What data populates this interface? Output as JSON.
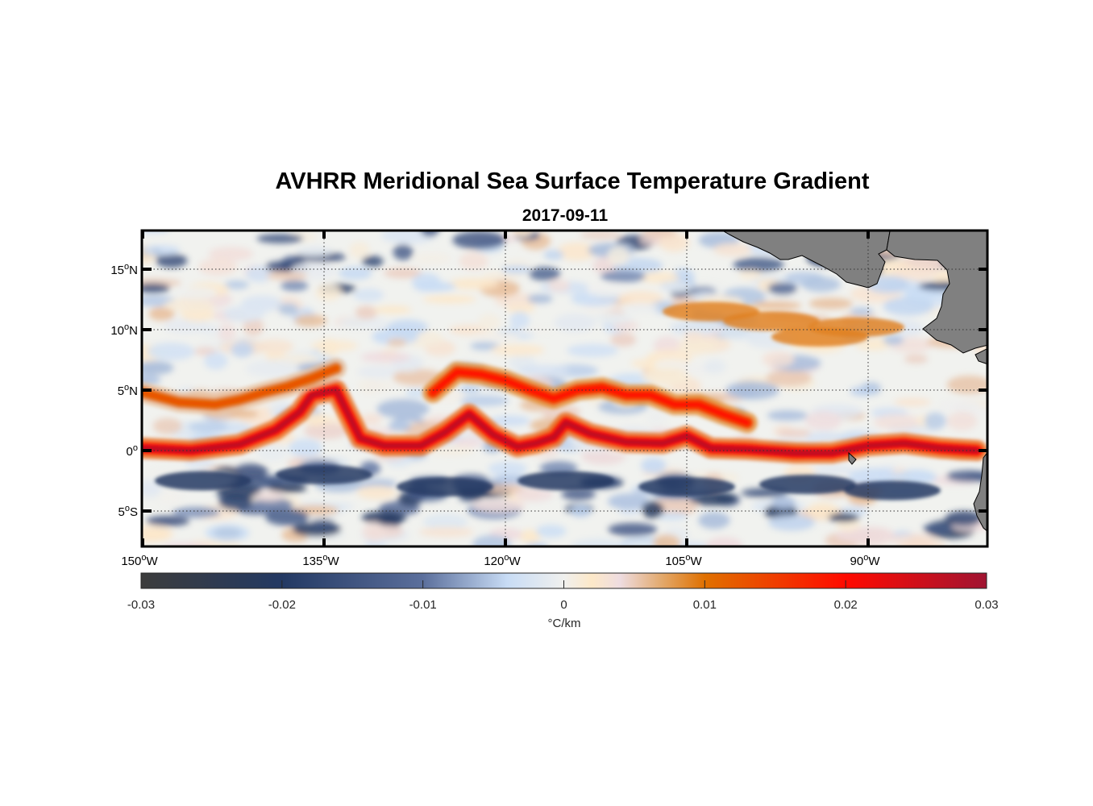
{
  "chart_data": {
    "type": "heatmap",
    "title": "AVHRR Meridional Sea Surface Temperature Gradient",
    "subtitle": "2017-09-11",
    "xlabel": "",
    "ylabel": "",
    "x_range_deg_lon": [
      -150,
      -80
    ],
    "y_range_deg_lat": [
      -8,
      18.2
    ],
    "x_ticks": [
      {
        "value": -150,
        "num": "150",
        "hemi": "W"
      },
      {
        "value": -135,
        "num": "135",
        "hemi": "W"
      },
      {
        "value": -120,
        "num": "120",
        "hemi": "W"
      },
      {
        "value": -105,
        "num": "105",
        "hemi": "W"
      },
      {
        "value": -90,
        "num": "90",
        "hemi": "W"
      }
    ],
    "y_ticks": [
      {
        "value": 15,
        "num": "15",
        "hemi": "N"
      },
      {
        "value": 10,
        "num": "10",
        "hemi": "N"
      },
      {
        "value": 5,
        "num": "5",
        "hemi": "N"
      },
      {
        "value": 0,
        "num": "0",
        "hemi": ""
      },
      {
        "value": -5,
        "num": "5",
        "hemi": "S"
      }
    ],
    "grid": true,
    "land_color": "#808080",
    "colorbar": {
      "label": "°C/km",
      "range": [
        -0.03,
        0.03
      ],
      "ticks": [
        -0.03,
        -0.02,
        -0.01,
        0,
        0.01,
        0.02,
        0.03
      ],
      "tick_labels": [
        "-0.03",
        "-0.02",
        "-0.01",
        "0",
        "0.01",
        "0.02",
        "0.03"
      ],
      "placement": "bottom",
      "colormap": [
        {
          "v": -0.03,
          "c": "#3c3c3c"
        },
        {
          "v": -0.02,
          "c": "#233963"
        },
        {
          "v": -0.01,
          "c": "#5b6f9c"
        },
        {
          "v": -0.004,
          "c": "#c8dcf5"
        },
        {
          "v": 0,
          "c": "#f0f0ee"
        },
        {
          "v": 0.002,
          "c": "#fde8c8"
        },
        {
          "v": 0.004,
          "c": "#eedce0"
        },
        {
          "v": 0.007,
          "c": "#e2a86a"
        },
        {
          "v": 0.01,
          "c": "#e07000"
        },
        {
          "v": 0.02,
          "c": "#ff0a00"
        },
        {
          "v": 0.03,
          "c": "#a01432"
        }
      ]
    },
    "features": [
      {
        "kind": "front",
        "desc": "tropical instability wave front (positive gradient)",
        "lon": [
          -150,
          -146,
          -142,
          -139,
          -137,
          -136,
          -134,
          -132,
          -130,
          -127,
          -125,
          -123,
          -121,
          -119,
          -117.5,
          -116,
          -115,
          -113,
          -110,
          -107,
          -105,
          -103,
          -100,
          -96,
          -93,
          -90,
          -87,
          -84,
          -81
        ],
        "lat": [
          0.2,
          0,
          0.5,
          1.7,
          3.2,
          4.6,
          5.0,
          1.0,
          0.4,
          0.4,
          1.5,
          3.0,
          1.3,
          0.3,
          0.6,
          1.1,
          2.3,
          1.4,
          0.7,
          0.6,
          1.2,
          0.2,
          0.1,
          -0.2,
          -0.2,
          0.4,
          0.6,
          0.2,
          0.0
        ],
        "value": 0.027
      },
      {
        "kind": "front",
        "desc": "northern secondary front",
        "lon": [
          -150,
          -147,
          -144,
          -142,
          -140,
          -138,
          -136,
          -134
        ],
        "lat": [
          4.8,
          4.0,
          3.8,
          4.2,
          4.8,
          5.3,
          6.0,
          6.8
        ],
        "value": 0.013
      },
      {
        "kind": "front",
        "desc": "northern crest near 120W",
        "lon": [
          -126,
          -124,
          -122,
          -120,
          -118,
          -116,
          -114,
          -112,
          -110,
          -108,
          -106,
          -104,
          -102,
          -100
        ],
        "lat": [
          4.8,
          6.5,
          6.3,
          5.8,
          5.0,
          4.3,
          5.0,
          5.2,
          4.6,
          4.6,
          3.8,
          3.8,
          3.0,
          2.3
        ],
        "value": 0.02
      },
      {
        "kind": "patch",
        "desc": "orange band north of Central America coast",
        "lon": [
          -103,
          -98,
          -94,
          -91
        ],
        "lat": [
          11.5,
          10.7,
          9.4,
          10.2
        ],
        "value": 0.009
      },
      {
        "kind": "patch",
        "desc": "negative gradient bands south of equator",
        "lon": [
          -145,
          -135,
          -125,
          -115,
          -105,
          -95,
          -88
        ],
        "lat": [
          -2.5,
          -2,
          -3,
          -2.5,
          -3,
          -2.8,
          -3.3
        ],
        "value": -0.02
      }
    ]
  }
}
